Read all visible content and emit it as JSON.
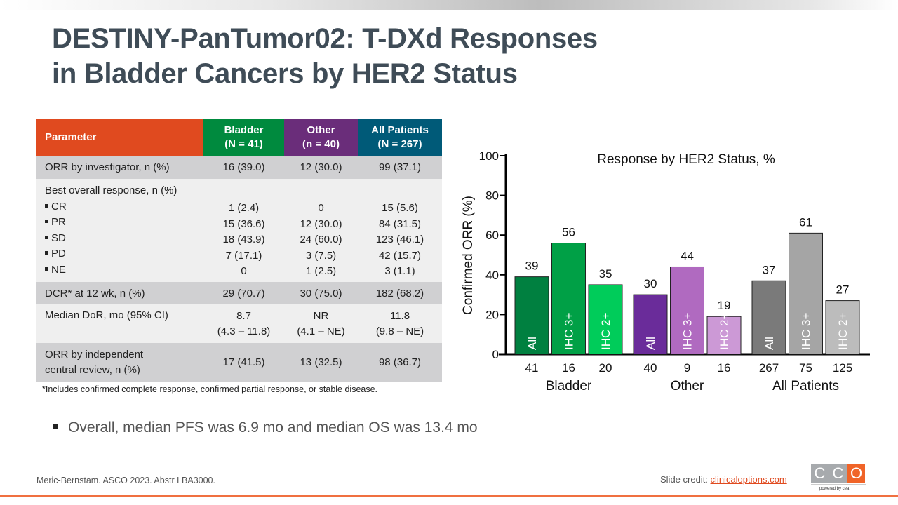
{
  "title_line1": "DESTINY-PanTumor02: T-DXd Responses",
  "title_line2": "in Bladder Cancers by HER2 Status",
  "table": {
    "headers": [
      {
        "l1": "Parameter"
      },
      {
        "l1": "Bladder",
        "l2": "(N = 41)"
      },
      {
        "l1": "Other",
        "l2": "(n = 40)"
      },
      {
        "l1": "All Patients",
        "l2": "(N = 267)"
      }
    ],
    "orr_inv": [
      "ORR by investigator, n (%)",
      "16 (39.0)",
      "12 (30.0)",
      "99 (37.1)"
    ],
    "bor_label": "Best overall response, n (%)",
    "bor": [
      [
        "CR",
        "1 (2.4)",
        "0",
        "15 (5.6)"
      ],
      [
        "PR",
        "15 (36.6)",
        "12 (30.0)",
        "84 (31.5)"
      ],
      [
        "SD",
        "18 (43.9)",
        "24 (60.0)",
        "123 (46.1)"
      ],
      [
        "PD",
        "7 (17.1)",
        "3 (7.5)",
        "42 (15.7)"
      ],
      [
        "NE",
        "0",
        "1 (2.5)",
        "3 (1.1)"
      ]
    ],
    "dcr": [
      "DCR* at 12 wk, n (%)",
      "29 (70.7)",
      "30 (75.0)",
      "182 (68.2)"
    ],
    "dor": {
      "label": "Median DoR, mo (95% CI)",
      "vals": [
        [
          "8.7",
          "(4.3 – 11.8)"
        ],
        [
          "NR",
          "(4.1 – NE)"
        ],
        [
          "11.8",
          "(9.8 – NE)"
        ]
      ]
    },
    "irc": {
      "l1": "ORR by independent",
      "l2": "central review, n (%)",
      "vals": [
        "17 (41.5)",
        "13 (32.5)",
        "98 (36.7)"
      ]
    }
  },
  "footnote": "*Includes confirmed complete response, confirmed partial response, or stable disease.",
  "bullet": "Overall, median PFS was 6.9 mo and median OS was 13.4 mo",
  "citation": "Meric-Bernstam. ASCO 2023. Abstr LBA3000.",
  "credit_label": "Slide credit: ",
  "credit_link": "clinicaloptions.com",
  "logo": {
    "letters": [
      "C",
      "C",
      "O"
    ],
    "tagline": "powered by cea"
  },
  "chart_data": {
    "type": "bar",
    "title": "Response by HER2 Status, %",
    "ylabel": "Confirmed ORR (%)",
    "ylim": [
      0,
      100
    ],
    "yticks": [
      0,
      20,
      40,
      60,
      80,
      100
    ],
    "groups": [
      "Bladder",
      "Other",
      "All Patients"
    ],
    "bars": [
      {
        "group": "Bladder",
        "label": "All",
        "n": "41",
        "value": 39,
        "color": "#008040"
      },
      {
        "group": "Bladder",
        "label": "IHC 3+",
        "n": "16",
        "value": 56,
        "color": "#00a046"
      },
      {
        "group": "Bladder",
        "label": "IHC 2+",
        "n": "20",
        "value": 35,
        "color": "#00cc5a"
      },
      {
        "group": "Other",
        "label": "All",
        "n": "40",
        "value": 30,
        "color": "#6a2c9a"
      },
      {
        "group": "Other",
        "label": "IHC 3+",
        "n": "9",
        "value": 44,
        "color": "#b06ac0"
      },
      {
        "group": "Other",
        "label": "IHC 2+",
        "n": "16",
        "value": 19,
        "color": "#cc99d6"
      },
      {
        "group": "All Patients",
        "label": "All",
        "n": "267",
        "value": 37,
        "color": "#7a7a7a"
      },
      {
        "group": "All Patients",
        "label": "IHC 3+",
        "n": "75",
        "value": 61,
        "color": "#a5a5a5"
      },
      {
        "group": "All Patients",
        "label": "IHC 2+",
        "n": "125",
        "value": 27,
        "color": "#bcbcbc"
      }
    ]
  }
}
